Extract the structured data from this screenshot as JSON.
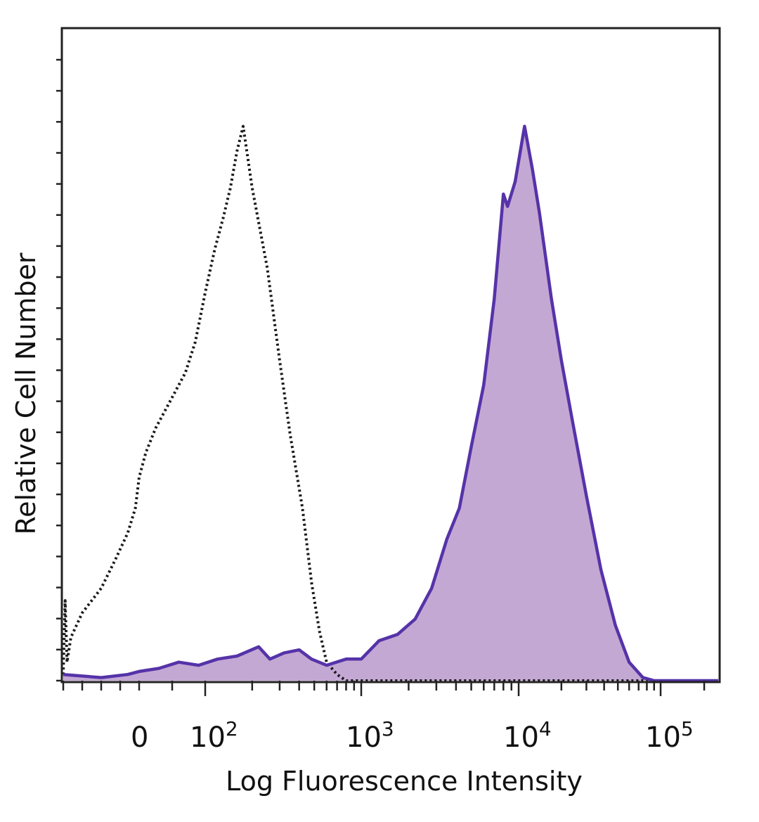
{
  "chart_data": {
    "type": "area",
    "title": "",
    "xlabel": "Log Fluorescence Intensity",
    "ylabel": "Relative Cell Number",
    "x_scale": "biexponential",
    "xlim": [
      -200,
      250000
    ],
    "ylim": [
      0,
      100
    ],
    "grid": false,
    "legend": "none",
    "x_ticks": [
      {
        "value": 0,
        "base": "0",
        "exp": ""
      },
      {
        "value": 100,
        "base": "10",
        "exp": "2"
      },
      {
        "value": 1000,
        "base": "10",
        "exp": "3"
      },
      {
        "value": 10000,
        "base": "10",
        "exp": "4"
      },
      {
        "value": 100000,
        "base": "10",
        "exp": "5"
      }
    ],
    "series": [
      {
        "style": "dotted",
        "color": "#1a1a1a",
        "fill": "none",
        "points": [
          [
            -200,
            1
          ],
          [
            -195,
            13
          ],
          [
            -190,
            3
          ],
          [
            -180,
            7
          ],
          [
            -150,
            11
          ],
          [
            -100,
            15
          ],
          [
            -60,
            20
          ],
          [
            -30,
            24
          ],
          [
            -10,
            28
          ],
          [
            0,
            33
          ],
          [
            10,
            37
          ],
          [
            25,
            41
          ],
          [
            40,
            44
          ],
          [
            55,
            47
          ],
          [
            70,
            50
          ],
          [
            85,
            55
          ],
          [
            100,
            63
          ],
          [
            115,
            70
          ],
          [
            130,
            75
          ],
          [
            145,
            80
          ],
          [
            160,
            86
          ],
          [
            175,
            90
          ],
          [
            200,
            80
          ],
          [
            250,
            67
          ],
          [
            300,
            52
          ],
          [
            350,
            40
          ],
          [
            420,
            28
          ],
          [
            480,
            16
          ],
          [
            540,
            8
          ],
          [
            600,
            3
          ],
          [
            700,
            1
          ],
          [
            800,
            0
          ],
          [
            250000,
            0
          ]
        ]
      },
      {
        "style": "solid",
        "color": "#5533a8",
        "fill": "#c4a8d4",
        "points": [
          [
            -200,
            1
          ],
          [
            -100,
            0.5
          ],
          [
            -30,
            1
          ],
          [
            0,
            1.5
          ],
          [
            30,
            2
          ],
          [
            60,
            3
          ],
          [
            90,
            2.5
          ],
          [
            120,
            3.5
          ],
          [
            160,
            4
          ],
          [
            220,
            5.5
          ],
          [
            260,
            3.5
          ],
          [
            320,
            4.5
          ],
          [
            400,
            5
          ],
          [
            480,
            3.5
          ],
          [
            600,
            2.5
          ],
          [
            800,
            3.5
          ],
          [
            1000,
            3.5
          ],
          [
            1300,
            6.5
          ],
          [
            1700,
            7.5
          ],
          [
            2200,
            10
          ],
          [
            2800,
            15
          ],
          [
            3500,
            23
          ],
          [
            4200,
            28
          ],
          [
            5000,
            38
          ],
          [
            6000,
            48
          ],
          [
            7000,
            62
          ],
          [
            8000,
            79
          ],
          [
            8500,
            77
          ],
          [
            9500,
            81
          ],
          [
            11000,
            90
          ],
          [
            12500,
            83
          ],
          [
            14000,
            76
          ],
          [
            17000,
            62
          ],
          [
            20000,
            52
          ],
          [
            24000,
            42
          ],
          [
            30000,
            30
          ],
          [
            38000,
            18
          ],
          [
            48000,
            9
          ],
          [
            60000,
            3
          ],
          [
            75000,
            0.5
          ],
          [
            90000,
            0
          ],
          [
            250000,
            0
          ]
        ]
      }
    ]
  }
}
